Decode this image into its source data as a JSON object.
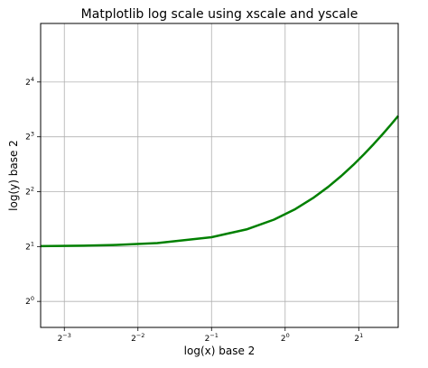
{
  "chart_data": {
    "type": "line",
    "title": "Matplotlib log scale using xscale and yscale",
    "xlabel": "log(x) base 2",
    "ylabel": "log(y) base 2",
    "xscale": "log2",
    "yscale": "log2",
    "xlim": [
      0.1,
      2.9
    ],
    "ylim": [
      0.72,
      33.5
    ],
    "grid": true,
    "x_ticks": [
      {
        "value": 0.125,
        "base": "2",
        "exp": "−3"
      },
      {
        "value": 0.25,
        "base": "2",
        "exp": "−2"
      },
      {
        "value": 0.5,
        "base": "2",
        "exp": "−1"
      },
      {
        "value": 1,
        "base": "2",
        "exp": "0"
      },
      {
        "value": 2,
        "base": "2",
        "exp": "1"
      }
    ],
    "y_ticks": [
      {
        "value": 1,
        "base": "2",
        "exp": "0"
      },
      {
        "value": 2,
        "base": "2",
        "exp": "1"
      },
      {
        "value": 4,
        "base": "2",
        "exp": "2"
      },
      {
        "value": 8,
        "base": "2",
        "exp": "3"
      },
      {
        "value": 16,
        "base": "2",
        "exp": "4"
      }
    ],
    "series": [
      {
        "color": "#008000",
        "x": [
          0.1,
          0.15,
          0.2,
          0.3,
          0.5,
          0.7,
          0.9,
          1.1,
          1.3,
          1.5,
          1.7,
          1.9,
          2.1,
          2.3,
          2.5,
          2.7,
          2.9
        ],
        "y": [
          2.01,
          2.0225,
          2.04,
          2.09,
          2.25,
          2.49,
          2.81,
          3.21,
          3.69,
          4.25,
          4.89,
          5.61,
          6.41,
          7.29,
          8.25,
          9.29,
          10.41
        ]
      }
    ]
  }
}
